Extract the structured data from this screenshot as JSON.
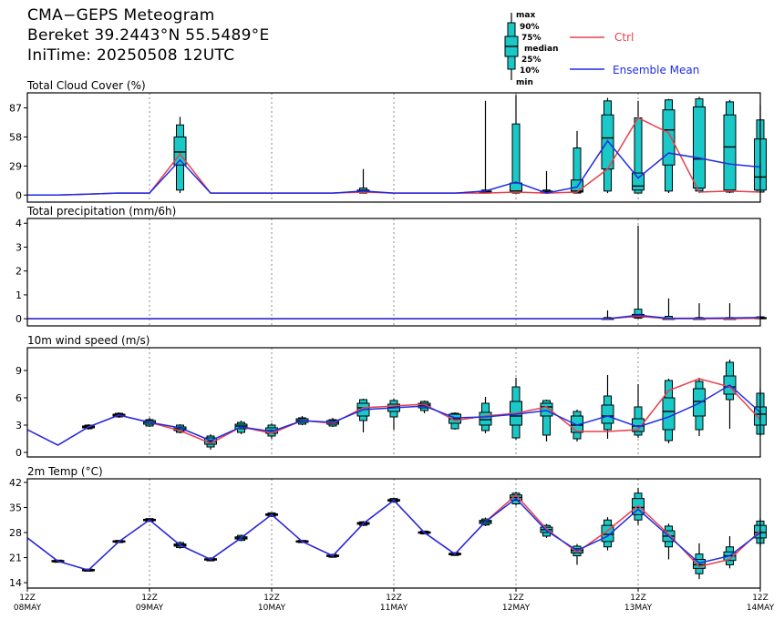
{
  "header": {
    "title": "CMA−GEPS Meteogram",
    "location": "Bereket 39.2443°N 55.5489°E",
    "init": "IniTime: 20250508 12UTC"
  },
  "legend": {
    "box_labels": [
      "max",
      "90%",
      "75%",
      "median",
      "25%",
      "10%",
      "min"
    ],
    "ctrl_label": "Ctrl",
    "mean_label": "Ensemble Mean",
    "colors": {
      "ctrl": "#e8404a",
      "mean": "#1e2be6",
      "box": "#1ac8c8"
    }
  },
  "chart_data": {
    "type": "box",
    "x_time_labels": [
      [
        "12Z",
        "08MAY"
      ],
      [
        "12Z",
        "09MAY"
      ],
      [
        "12Z",
        "10MAY"
      ],
      [
        "12Z",
        "11MAY"
      ],
      [
        "12Z",
        "12MAY"
      ],
      [
        "12Z",
        "13MAY"
      ],
      [
        "12Z",
        "14MAY"
      ]
    ],
    "x_step_hours": 6,
    "x_range_steps": [
      0,
      24
    ],
    "grid": "dashed vertical lines at 12Z each day",
    "panels": [
      {
        "title": "Total Cloud Cover (%)",
        "ylim": [
          -7,
          102
        ],
        "yticks": [
          0,
          29,
          58,
          87
        ],
        "ctrl": [
          0,
          0,
          1,
          2,
          2,
          41,
          2,
          2,
          2,
          2,
          2,
          3,
          2,
          2,
          2,
          2,
          3,
          2,
          3,
          26,
          77,
          62,
          3,
          4,
          3
        ],
        "mean": [
          0,
          0,
          1,
          2,
          2,
          35,
          2,
          2,
          2,
          2,
          2,
          4,
          2,
          2,
          2,
          4,
          13,
          2,
          8,
          54,
          17,
          42,
          37,
          31,
          28
        ],
        "boxes": [
          {
            "s": 5,
            "min": 2,
            "p10": 5,
            "p25": 30,
            "med": 43,
            "p75": 58,
            "p90": 70,
            "max": 78
          },
          {
            "s": 11,
            "min": 2,
            "p10": 2,
            "p25": 3,
            "med": 4,
            "p75": 5,
            "p90": 7,
            "max": 26
          },
          {
            "s": 15,
            "min": 2,
            "p10": 2,
            "p25": 2,
            "med": 3,
            "p75": 4,
            "p90": 5,
            "max": 94
          },
          {
            "s": 16,
            "min": 2,
            "p10": 2,
            "p25": 3,
            "med": 4,
            "p75": 12,
            "p90": 71,
            "max": 100
          },
          {
            "s": 17,
            "min": 2,
            "p10": 2,
            "p25": 2,
            "med": 3,
            "p75": 4,
            "p90": 5,
            "max": 24
          },
          {
            "s": 18,
            "min": 2,
            "p10": 2,
            "p25": 3,
            "med": 4,
            "p75": 15,
            "p90": 47,
            "max": 64
          },
          {
            "s": 19,
            "min": 2,
            "p10": 4,
            "p25": 26,
            "med": 57,
            "p75": 80,
            "p90": 94,
            "max": 97
          },
          {
            "s": 20,
            "min": 2,
            "p10": 2,
            "p25": 5,
            "med": 9,
            "p75": 22,
            "p90": 77,
            "max": 94
          },
          {
            "s": 21,
            "min": 2,
            "p10": 4,
            "p25": 30,
            "med": 65,
            "p75": 85,
            "p90": 95,
            "max": 96
          },
          {
            "s": 22,
            "min": 2,
            "p10": 4,
            "p25": 7,
            "med": 36,
            "p75": 88,
            "p90": 96,
            "max": 98
          },
          {
            "s": 23,
            "min": 2,
            "p10": 3,
            "p25": 5,
            "med": 48,
            "p75": 80,
            "p90": 93,
            "max": 95
          },
          {
            "s": 24,
            "min": 2,
            "p10": 3,
            "p25": 5,
            "med": 18,
            "p75": 56,
            "p90": 75,
            "max": 90
          }
        ]
      },
      {
        "title": "Total precipitation (mm/6h)",
        "ylim": [
          -0.3,
          4.2
        ],
        "yticks": [
          0,
          1,
          2,
          3,
          4
        ],
        "ctrl": [
          0,
          0,
          0,
          0,
          0,
          0,
          0,
          0,
          0,
          0,
          0,
          0,
          0,
          0,
          0,
          0,
          0,
          0,
          0,
          0,
          0.1,
          0,
          0,
          0,
          0.02
        ],
        "mean": [
          0,
          0,
          0,
          0,
          0,
          0,
          0,
          0,
          0,
          0,
          0,
          0,
          0,
          0,
          0,
          0,
          0,
          0,
          0,
          0,
          0.15,
          0.02,
          0.02,
          0.03,
          0.05
        ],
        "boxes": [
          {
            "s": 19,
            "min": 0,
            "p10": 0,
            "p25": 0,
            "med": 0,
            "p75": 0,
            "p90": 0.05,
            "max": 0.35
          },
          {
            "s": 20,
            "min": 0,
            "p10": 0.02,
            "p25": 0.06,
            "med": 0.1,
            "p75": 0.18,
            "p90": 0.4,
            "max": 3.9
          },
          {
            "s": 21,
            "min": 0,
            "p10": 0,
            "p25": 0,
            "med": 0,
            "p75": 0,
            "p90": 0.1,
            "max": 0.85
          },
          {
            "s": 22,
            "min": 0,
            "p10": 0,
            "p25": 0,
            "med": 0,
            "p75": 0,
            "p90": 0.05,
            "max": 0.65
          },
          {
            "s": 23,
            "min": 0,
            "p10": 0,
            "p25": 0,
            "med": 0,
            "p75": 0,
            "p90": 0.05,
            "max": 0.65
          },
          {
            "s": 24,
            "min": 0,
            "p10": 0,
            "p25": 0,
            "med": 0.02,
            "p75": 0.05,
            "p90": 0.08,
            "max": 0.1
          }
        ]
      },
      {
        "title": "10m wind speed (m/s)",
        "ylim": [
          -0.5,
          11.5
        ],
        "yticks": [
          0,
          3,
          6,
          9
        ],
        "ctrl": [
          2.5,
          0.8,
          2.8,
          4.1,
          3.3,
          2.4,
          1.0,
          2.8,
          2.1,
          3.5,
          3.2,
          4.9,
          5.1,
          5.3,
          3.5,
          4.0,
          4.3,
          5.0,
          2.3,
          2.3,
          2.5,
          6.8,
          8.1,
          7.2,
          3.6
        ],
        "mean": [
          2.5,
          0.8,
          2.8,
          4.1,
          3.3,
          2.7,
          1.3,
          2.8,
          2.3,
          3.5,
          3.3,
          4.7,
          4.9,
          5.1,
          3.8,
          3.9,
          4.2,
          4.6,
          3.0,
          4.0,
          2.8,
          3.9,
          5.4,
          7.4,
          4.4
        ],
        "boxes": [
          {
            "s": 2,
            "min": 2.5,
            "p10": 2.6,
            "p25": 2.7,
            "med": 2.8,
            "p75": 2.9,
            "p90": 3.0,
            "max": 3.1
          },
          {
            "s": 3,
            "min": 3.8,
            "p10": 3.9,
            "p25": 4.0,
            "med": 4.1,
            "p75": 4.2,
            "p90": 4.3,
            "max": 4.4
          },
          {
            "s": 4,
            "min": 2.8,
            "p10": 2.9,
            "p25": 3.1,
            "med": 3.3,
            "p75": 3.5,
            "p90": 3.6,
            "max": 3.8
          },
          {
            "s": 5,
            "min": 2.1,
            "p10": 2.2,
            "p25": 2.4,
            "med": 2.6,
            "p75": 2.8,
            "p90": 3.0,
            "max": 3.1
          },
          {
            "s": 6,
            "min": 0.3,
            "p10": 0.6,
            "p25": 0.9,
            "med": 1.2,
            "p75": 1.6,
            "p90": 1.8,
            "max": 2.0
          },
          {
            "s": 7,
            "min": 2.0,
            "p10": 2.2,
            "p25": 2.6,
            "med": 2.9,
            "p75": 3.1,
            "p90": 3.3,
            "max": 3.5
          },
          {
            "s": 8,
            "min": 1.5,
            "p10": 1.8,
            "p25": 2.1,
            "med": 2.4,
            "p75": 2.7,
            "p90": 3.0,
            "max": 3.2
          },
          {
            "s": 9,
            "min": 3.0,
            "p10": 3.1,
            "p25": 3.3,
            "med": 3.5,
            "p75": 3.7,
            "p90": 3.8,
            "max": 4.0
          },
          {
            "s": 10,
            "min": 2.8,
            "p10": 2.9,
            "p25": 3.1,
            "med": 3.3,
            "p75": 3.5,
            "p90": 3.6,
            "max": 3.8
          },
          {
            "s": 11,
            "min": 2.2,
            "p10": 3.5,
            "p25": 4.0,
            "med": 4.9,
            "p75": 5.4,
            "p90": 5.8,
            "max": 5.9
          },
          {
            "s": 12,
            "min": 2.5,
            "p10": 3.9,
            "p25": 4.5,
            "med": 5.0,
            "p75": 5.3,
            "p90": 5.7,
            "max": 5.9
          },
          {
            "s": 13,
            "min": 4.3,
            "p10": 4.6,
            "p25": 4.9,
            "med": 5.2,
            "p75": 5.4,
            "p90": 5.6,
            "max": 5.7
          },
          {
            "s": 14,
            "min": 2.5,
            "p10": 2.6,
            "p25": 3.2,
            "med": 3.7,
            "p75": 4.2,
            "p90": 4.3,
            "max": 4.4
          },
          {
            "s": 15,
            "min": 2.1,
            "p10": 2.4,
            "p25": 3.0,
            "med": 3.6,
            "p75": 4.4,
            "p90": 5.4,
            "max": 6.1
          },
          {
            "s": 16,
            "min": 1.4,
            "p10": 1.6,
            "p25": 3.0,
            "med": 4.0,
            "p75": 5.6,
            "p90": 7.2,
            "max": 8.2
          },
          {
            "s": 17,
            "min": 1.2,
            "p10": 1.9,
            "p25": 4.0,
            "med": 5.0,
            "p75": 5.4,
            "p90": 5.7,
            "max": 5.8
          },
          {
            "s": 18,
            "min": 1.2,
            "p10": 1.5,
            "p25": 2.2,
            "med": 3.0,
            "p75": 4.0,
            "p90": 4.5,
            "max": 4.7
          },
          {
            "s": 19,
            "min": 1.5,
            "p10": 2.5,
            "p25": 3.2,
            "med": 4.0,
            "p75": 5.2,
            "p90": 6.2,
            "max": 8.5
          },
          {
            "s": 20,
            "min": 1.6,
            "p10": 1.9,
            "p25": 2.3,
            "med": 2.9,
            "p75": 3.7,
            "p90": 5.0,
            "max": 7.5
          },
          {
            "s": 21,
            "min": 1.0,
            "p10": 1.3,
            "p25": 2.5,
            "med": 4.5,
            "p75": 6.0,
            "p90": 7.9,
            "max": 8.1
          },
          {
            "s": 22,
            "min": 1.8,
            "p10": 2.5,
            "p25": 4.0,
            "med": 5.6,
            "p75": 7.0,
            "p90": 7.8,
            "max": 8.2
          },
          {
            "s": 23,
            "min": 2.6,
            "p10": 5.8,
            "p25": 6.4,
            "med": 7.2,
            "p75": 8.4,
            "p90": 9.9,
            "max": 10.2
          },
          {
            "s": 24,
            "min": 1.8,
            "p10": 2.0,
            "p25": 3.0,
            "med": 4.2,
            "p75": 5.0,
            "p90": 6.5,
            "max": 7.0
          }
        ]
      },
      {
        "title": "2m Temp (°C)",
        "ylim": [
          12.5,
          43
        ],
        "yticks": [
          14,
          21,
          28,
          35,
          42
        ],
        "ctrl": [
          26.5,
          20,
          17.5,
          25.5,
          31.5,
          24.5,
          20.5,
          26.5,
          33,
          25.5,
          21.5,
          30.5,
          37,
          28,
          22,
          31,
          38.5,
          29,
          22.5,
          28.5,
          35.5,
          27.5,
          18.5,
          20.5,
          28.5
        ],
        "mean": [
          26.5,
          20,
          17.5,
          25.5,
          31.5,
          24.5,
          20.5,
          26.5,
          33,
          25.5,
          21.5,
          30.5,
          37,
          28,
          22,
          31,
          37.5,
          28.5,
          23,
          27,
          34.5,
          27,
          19.5,
          21.5,
          28
        ],
        "boxes": [
          {
            "s": 1,
            "min": 19.6,
            "p10": 19.7,
            "p25": 19.8,
            "med": 20,
            "p75": 20.2,
            "p90": 20.3,
            "max": 20.4
          },
          {
            "s": 2,
            "min": 17.1,
            "p10": 17.2,
            "p25": 17.3,
            "med": 17.5,
            "p75": 17.7,
            "p90": 17.8,
            "max": 17.9
          },
          {
            "s": 3,
            "min": 25.1,
            "p10": 25.2,
            "p25": 25.3,
            "med": 25.5,
            "p75": 25.7,
            "p90": 25.8,
            "max": 25.9
          },
          {
            "s": 4,
            "min": 31,
            "p10": 31.1,
            "p25": 31.3,
            "med": 31.5,
            "p75": 31.7,
            "p90": 31.9,
            "max": 32
          },
          {
            "s": 5,
            "min": 23.5,
            "p10": 23.8,
            "p25": 24.2,
            "med": 24.5,
            "p75": 24.8,
            "p90": 25.2,
            "max": 25.5
          },
          {
            "s": 6,
            "min": 20,
            "p10": 20.1,
            "p25": 20.3,
            "med": 20.5,
            "p75": 20.7,
            "p90": 20.9,
            "max": 21
          },
          {
            "s": 7,
            "min": 25.6,
            "p10": 25.8,
            "p25": 26.2,
            "med": 26.5,
            "p75": 26.8,
            "p90": 27.2,
            "max": 27.4
          },
          {
            "s": 8,
            "min": 32.4,
            "p10": 32.5,
            "p25": 32.8,
            "med": 33,
            "p75": 33.2,
            "p90": 33.5,
            "max": 33.6
          },
          {
            "s": 9,
            "min": 25.1,
            "p10": 25.2,
            "p25": 25.3,
            "med": 25.5,
            "p75": 25.7,
            "p90": 25.8,
            "max": 25.9
          },
          {
            "s": 10,
            "min": 21,
            "p10": 21.1,
            "p25": 21.3,
            "med": 21.5,
            "p75": 21.7,
            "p90": 21.9,
            "max": 22
          },
          {
            "s": 11,
            "min": 29.8,
            "p10": 30,
            "p25": 30.3,
            "med": 30.5,
            "p75": 30.8,
            "p90": 31,
            "max": 31.2
          },
          {
            "s": 12,
            "min": 36.4,
            "p10": 36.5,
            "p25": 36.8,
            "med": 37,
            "p75": 37.2,
            "p90": 37.5,
            "max": 37.6
          },
          {
            "s": 13,
            "min": 27.5,
            "p10": 27.6,
            "p25": 27.8,
            "med": 28,
            "p75": 28.2,
            "p90": 28.4,
            "max": 28.5
          },
          {
            "s": 14,
            "min": 21.5,
            "p10": 21.6,
            "p25": 21.8,
            "med": 22,
            "p75": 22.2,
            "p90": 22.4,
            "max": 22.5
          },
          {
            "s": 15,
            "min": 29.8,
            "p10": 30.1,
            "p25": 30.5,
            "med": 31,
            "p75": 31.4,
            "p90": 31.8,
            "max": 32.2
          },
          {
            "s": 16,
            "min": 35.5,
            "p10": 36,
            "p25": 37,
            "med": 37.8,
            "p75": 38.5,
            "p90": 39,
            "max": 39.4
          },
          {
            "s": 17,
            "min": 26.5,
            "p10": 27,
            "p25": 28,
            "med": 28.8,
            "p75": 29.5,
            "p90": 30,
            "max": 30.4
          },
          {
            "s": 18,
            "min": 19,
            "p10": 21.5,
            "p25": 22.3,
            "med": 23,
            "p75": 23.5,
            "p90": 24.2,
            "max": 24.8
          },
          {
            "s": 19,
            "min": 23,
            "p10": 24,
            "p25": 25.5,
            "med": 27.5,
            "p75": 30,
            "p90": 31.5,
            "max": 32.3
          },
          {
            "s": 20,
            "min": 30.2,
            "p10": 31.5,
            "p25": 33,
            "med": 35,
            "p75": 37.5,
            "p90": 39,
            "max": 40.5
          },
          {
            "s": 21,
            "min": 20.5,
            "p10": 24,
            "p25": 25.5,
            "med": 27,
            "p75": 28.5,
            "p90": 29.8,
            "max": 30.5
          },
          {
            "s": 22,
            "min": 15,
            "p10": 16.5,
            "p25": 18,
            "med": 19,
            "p75": 20.5,
            "p90": 22,
            "max": 25
          },
          {
            "s": 23,
            "min": 18,
            "p10": 19,
            "p25": 20.2,
            "med": 21.5,
            "p75": 22.6,
            "p90": 24,
            "max": 27
          },
          {
            "s": 24,
            "min": 24,
            "p10": 25,
            "p25": 26.5,
            "med": 28,
            "p75": 30,
            "p90": 31.2,
            "max": 32
          }
        ]
      }
    ]
  }
}
